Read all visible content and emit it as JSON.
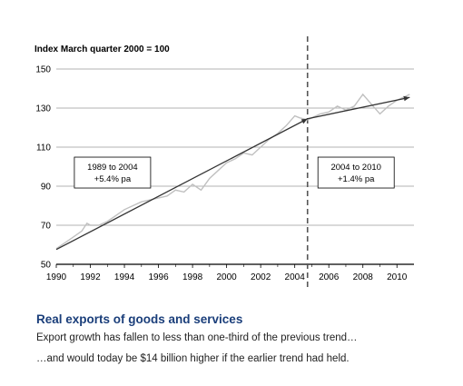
{
  "caption": {
    "title": "Real exports of goods and services",
    "line1": "Export growth has fallen to less than one-third of the previous trend…",
    "line2": "…and would today be $14 billion higher if the earlier trend had held."
  },
  "chart_data": {
    "type": "line",
    "title": "",
    "ylabel": "Index March quarter 2000 = 100",
    "xlabel": "",
    "xlim": [
      1990,
      2011
    ],
    "ylim": [
      50,
      150
    ],
    "xticks": [
      "1990",
      "1992",
      "1994",
      "1996",
      "1998",
      "2000",
      "2002",
      "2004",
      "2006",
      "2008",
      "2010"
    ],
    "yticks": [
      "50",
      "70",
      "90",
      "110",
      "130",
      "150"
    ],
    "grid": "horizontal",
    "break_year": 2004.75,
    "series": [
      {
        "type": "actual",
        "color": "#c0c0c0",
        "x": [
          1990,
          1990.5,
          1991,
          1991.5,
          1991.8,
          1992,
          1992.5,
          1993,
          1993.5,
          1994,
          1994.5,
          1995,
          1995.5,
          1996,
          1996.5,
          1997,
          1997.5,
          1998,
          1998.5,
          1999,
          1999.5,
          2000,
          2000.5,
          2001,
          2001.5,
          2002,
          2002.5,
          2003,
          2003.5,
          2004,
          2004.3,
          2004.75,
          2005,
          2005.5,
          2006,
          2006.5,
          2007,
          2007.5,
          2008,
          2008.5,
          2009,
          2009.5,
          2010,
          2010.5,
          2010.75
        ],
        "values": [
          58,
          61,
          64,
          67,
          71,
          70,
          70,
          72,
          75,
          78,
          80,
          82,
          83,
          84,
          85,
          88,
          87,
          91,
          88,
          94,
          98,
          102,
          104,
          107,
          106,
          110,
          114,
          117,
          121,
          126,
          125,
          124,
          125,
          127,
          128,
          131,
          129,
          131,
          137,
          132,
          127,
          131,
          134,
          136,
          137
        ]
      },
      {
        "type": "trend",
        "color": "#333333",
        "x": [
          1990,
          2004.75,
          2010.75
        ],
        "values": [
          57.6,
          124.5,
          135.5
        ]
      }
    ],
    "annotations": [
      {
        "text1": "1989 to 2004",
        "text2": "+5.4% pa",
        "x": 1993.3,
        "y": 96.5
      },
      {
        "text1": "2004 to 2010",
        "text2": "+1.4% pa",
        "x": 2007.6,
        "y": 96.5
      }
    ]
  }
}
